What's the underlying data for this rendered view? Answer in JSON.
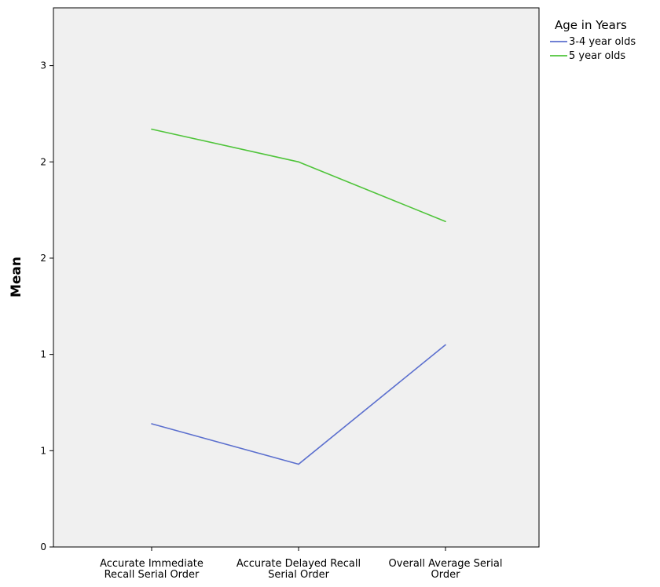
{
  "chart_data": {
    "type": "line",
    "title": "",
    "xlabel": "",
    "ylabel": "Mean",
    "ylim": [
      0,
      2.8
    ],
    "y_ticks": [
      {
        "value": 0,
        "label": "0"
      },
      {
        "value": 0.5,
        "label": "1"
      },
      {
        "value": 1.0,
        "label": "1"
      },
      {
        "value": 1.5,
        "label": "2"
      },
      {
        "value": 2.0,
        "label": "2"
      },
      {
        "value": 2.5,
        "label": "3"
      }
    ],
    "categories": [
      [
        "Accurate Immediate",
        "Recall Serial Order"
      ],
      [
        "Accurate Delayed Recall",
        "Serial Order"
      ],
      [
        "Overall Average Serial",
        "Order"
      ]
    ],
    "series": [
      {
        "name": "3-4 year olds",
        "color": "#5b6fce",
        "values": [
          0.64,
          0.43,
          1.05
        ]
      },
      {
        "name": "5 year olds",
        "color": "#4fc43a",
        "values": [
          2.17,
          2.0,
          1.69
        ]
      }
    ],
    "legend": {
      "title": "Age in Years",
      "position": "top-right"
    },
    "background": "#f0f0f0",
    "grid": false
  }
}
